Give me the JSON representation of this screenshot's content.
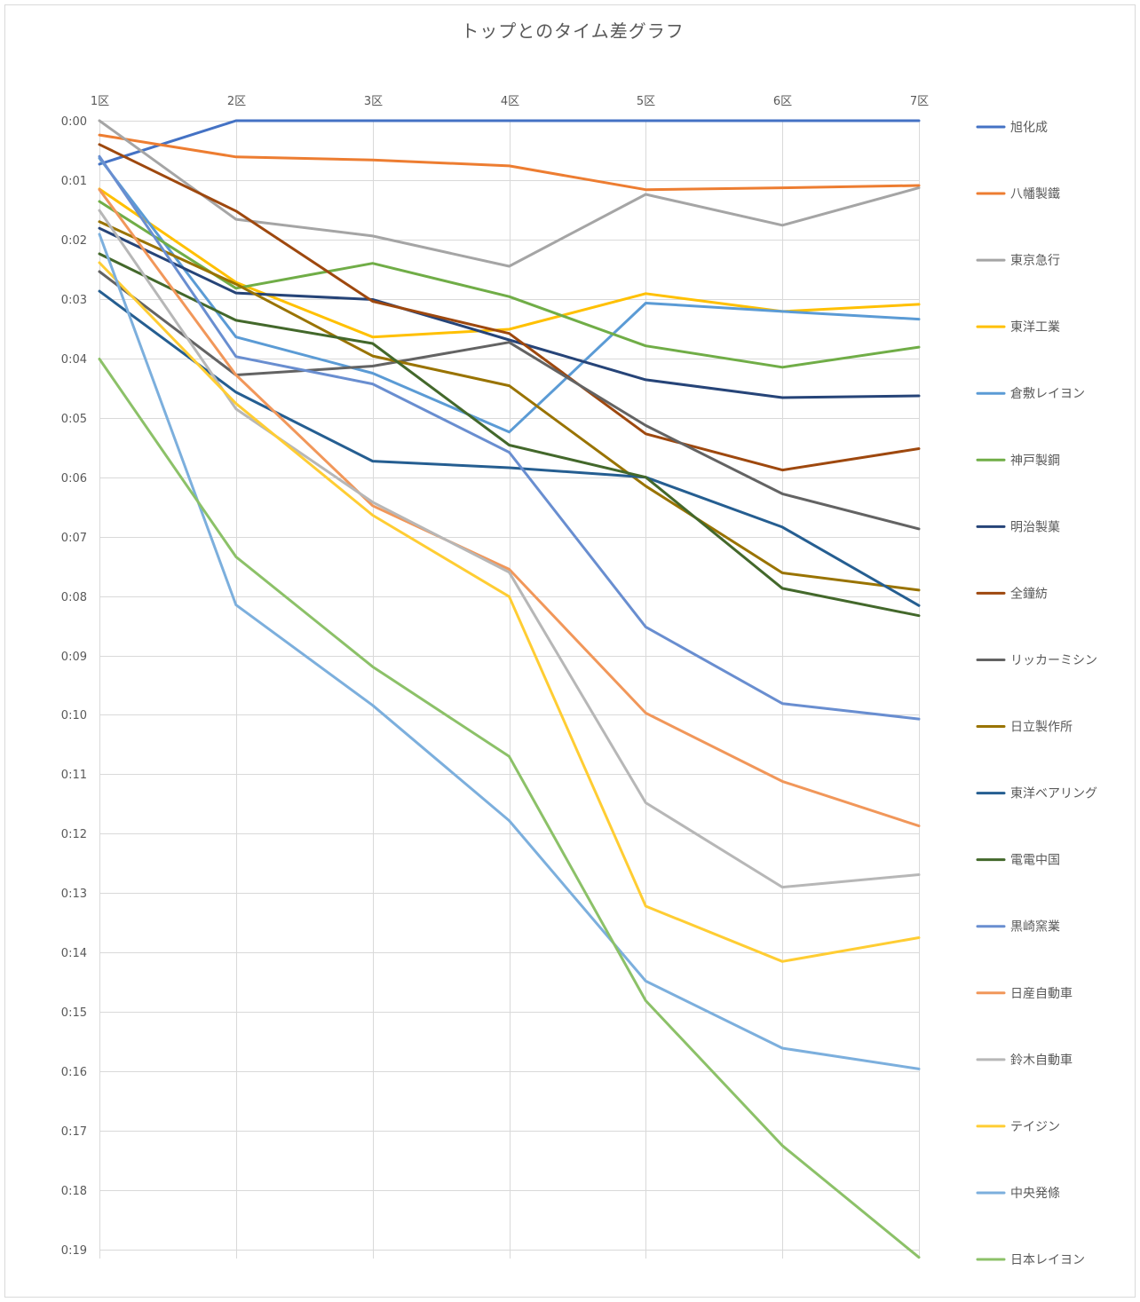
{
  "chart_data": {
    "type": "line",
    "title": "トップとのタイム差グラフ",
    "xlabel": "",
    "ylabel": "",
    "x_axis_position": "top",
    "y_reversed": true,
    "grid": true,
    "legend": "right",
    "categories": [
      "1区",
      "2区",
      "3区",
      "4区",
      "5区",
      "6区",
      "7区"
    ],
    "y_unit": "minutes",
    "ylim": [
      0,
      19.15
    ],
    "yticks": [
      {
        "value": 0,
        "label": "0:00"
      },
      {
        "value": 1,
        "label": "0:01"
      },
      {
        "value": 2,
        "label": "0:02"
      },
      {
        "value": 3,
        "label": "0:03"
      },
      {
        "value": 4,
        "label": "0:04"
      },
      {
        "value": 5,
        "label": "0:05"
      },
      {
        "value": 6,
        "label": "0:06"
      },
      {
        "value": 7,
        "label": "0:07"
      },
      {
        "value": 8,
        "label": "0:08"
      },
      {
        "value": 9,
        "label": "0:09"
      },
      {
        "value": 10,
        "label": "0:10"
      },
      {
        "value": 11,
        "label": "0:11"
      },
      {
        "value": 12,
        "label": "0:12"
      },
      {
        "value": 13,
        "label": "0:13"
      },
      {
        "value": 14,
        "label": "0:14"
      },
      {
        "value": 15,
        "label": "0:15"
      },
      {
        "value": 16,
        "label": "0:16"
      },
      {
        "value": 17,
        "label": "0:17"
      },
      {
        "value": 18,
        "label": "0:18"
      },
      {
        "value": 19,
        "label": "0:19"
      }
    ],
    "series": [
      {
        "name": "旭化成",
        "color": "#4472C4",
        "values": [
          0.73,
          0,
          0,
          0,
          0,
          0,
          0
        ]
      },
      {
        "name": "八幡製鐵",
        "color": "#ED7D31",
        "values": [
          0.24,
          0.61,
          0.66,
          0.76,
          1.16,
          1.13,
          1.09
        ]
      },
      {
        "name": "東京急行",
        "color": "#A5A5A5",
        "values": [
          0,
          1.66,
          1.94,
          2.45,
          1.24,
          1.76,
          1.13
        ]
      },
      {
        "name": "東洋工業",
        "color": "#FFC000",
        "values": [
          1.15,
          2.72,
          3.64,
          3.51,
          2.91,
          3.21,
          3.09
        ]
      },
      {
        "name": "倉敷レイヨン",
        "color": "#5B9BD5",
        "values": [
          0.63,
          3.64,
          4.25,
          5.24,
          3.07,
          3.21,
          3.34
        ]
      },
      {
        "name": "神戸製鋼",
        "color": "#70AD47",
        "values": [
          1.36,
          2.82,
          2.4,
          2.96,
          3.79,
          4.15,
          3.81
        ]
      },
      {
        "name": "明治製菓",
        "color": "#264478",
        "values": [
          1.81,
          2.9,
          3.01,
          3.69,
          4.36,
          4.66,
          4.63
        ]
      },
      {
        "name": "全鐘紡",
        "color": "#9E480E",
        "values": [
          0.4,
          1.52,
          3.04,
          3.58,
          5.27,
          5.88,
          5.52
        ]
      },
      {
        "name": "リッカーミシン",
        "color": "#636363",
        "values": [
          2.54,
          4.28,
          4.13,
          3.73,
          5.13,
          6.28,
          6.87
        ]
      },
      {
        "name": "日立製作所",
        "color": "#997300",
        "values": [
          1.7,
          2.75,
          3.96,
          4.46,
          6.15,
          7.61,
          7.9
        ]
      },
      {
        "name": "東洋ベアリング",
        "color": "#255E91",
        "values": [
          2.87,
          4.57,
          5.73,
          5.84,
          6.0,
          6.84,
          8.16
        ]
      },
      {
        "name": "電電中国",
        "color": "#43682B",
        "values": [
          2.24,
          3.36,
          3.75,
          5.46,
          6.0,
          7.87,
          8.33
        ]
      },
      {
        "name": "黒崎窯業",
        "color": "#698ED0",
        "values": [
          0.6,
          3.97,
          4.43,
          5.58,
          8.52,
          9.81,
          10.07
        ]
      },
      {
        "name": "日産自動車",
        "color": "#F1975A",
        "values": [
          1.16,
          4.28,
          6.48,
          7.55,
          9.97,
          11.12,
          11.87
        ]
      },
      {
        "name": "鈴木自動車",
        "color": "#B7B7B7",
        "values": [
          1.51,
          4.85,
          6.42,
          7.6,
          11.48,
          12.9,
          12.69
        ]
      },
      {
        "name": "テイジン",
        "color": "#FFCD33",
        "values": [
          2.39,
          4.76,
          6.64,
          8.01,
          13.22,
          14.15,
          13.75
        ]
      },
      {
        "name": "中央発條",
        "color": "#7CAFDD",
        "values": [
          1.91,
          8.15,
          9.84,
          11.78,
          14.48,
          15.61,
          15.96
        ]
      },
      {
        "name": "日本レイヨン",
        "color": "#8CC168",
        "values": [
          4.01,
          7.34,
          9.19,
          10.7,
          14.81,
          17.25,
          19.13
        ]
      }
    ]
  }
}
